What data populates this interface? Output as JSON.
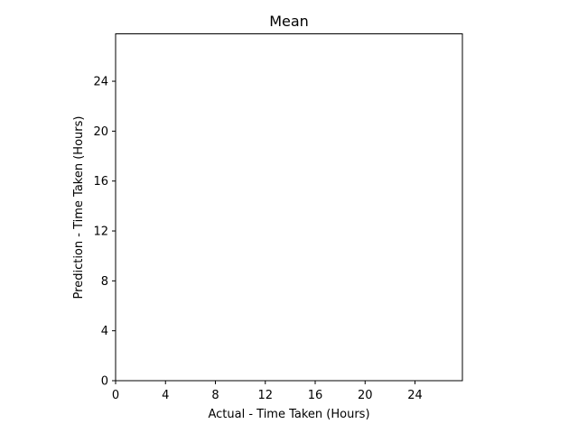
{
  "chart_data": {
    "type": "scatter",
    "title": "Mean",
    "xlabel": "Actual - Time Taken (Hours)",
    "ylabel": "Prediction - Time Taken (Hours)",
    "xlim": [
      0,
      27.8
    ],
    "ylim": [
      0,
      27.8
    ],
    "xticks": [
      0,
      4,
      8,
      12,
      16,
      20,
      24
    ],
    "yticks": [
      0,
      4,
      8,
      12,
      16,
      20,
      24
    ],
    "xtick_labels": [
      "0",
      "4",
      "8",
      "12",
      "16",
      "20",
      "24"
    ],
    "ytick_labels": [
      "0",
      "4",
      "8",
      "12",
      "16",
      "20",
      "24"
    ],
    "grid": false,
    "series": [
      {
        "x": [],
        "y": []
      }
    ]
  }
}
